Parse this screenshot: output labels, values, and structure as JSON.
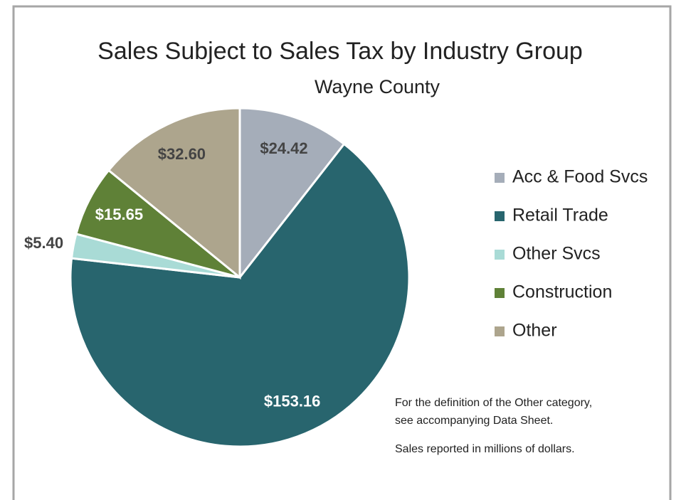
{
  "chart_data": {
    "type": "pie",
    "title": "Sales Subject to Sales Tax by Industry Group",
    "subtitle": "Wayne County",
    "categories": [
      "Acc & Food Svcs",
      "Retail Trade",
      "Other Svcs",
      "Construction",
      "Other"
    ],
    "values": [
      24.42,
      153.16,
      5.4,
      15.65,
      32.6
    ],
    "value_labels": [
      "$24.42",
      "$153.16",
      "$5.40",
      "$15.65",
      "$32.60"
    ],
    "colors": [
      "#a5adb9",
      "#28656e",
      "#a9dbd6",
      "#5f8137",
      "#ada58d"
    ],
    "legend": "right",
    "annotations": [
      "For the definition of the Other category,",
      "see accompanying Data Sheet.",
      "Sales reported in millions of dollars."
    ]
  }
}
